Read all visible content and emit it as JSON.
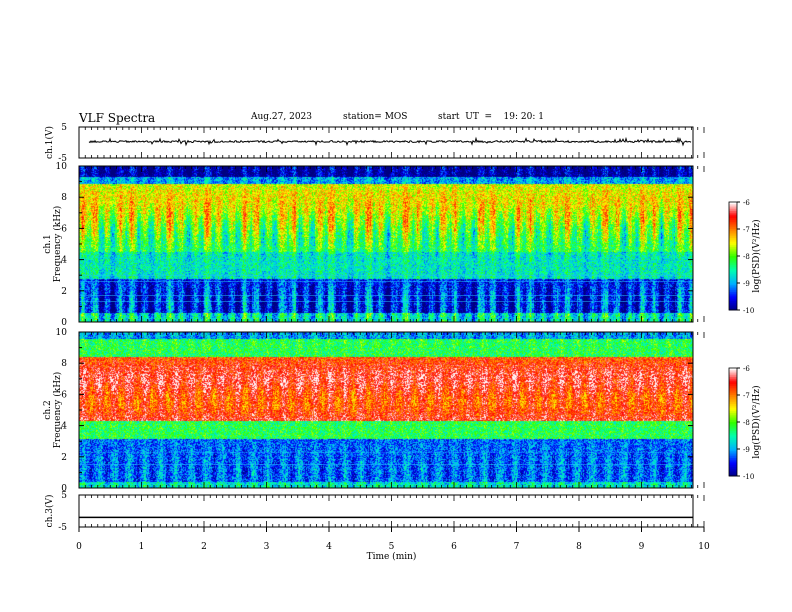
{
  "header": {
    "title": "VLF Spectra",
    "date": "Aug.27, 2023",
    "station": "station= MOS",
    "start": "start  UT  =    19: 20: 1"
  },
  "chart_data": [
    {
      "type": "line",
      "panel": "ch1-waveform",
      "ylabel": "ch.1(V)",
      "ylim": [
        -5,
        5
      ],
      "yticks": [
        "5",
        "-5"
      ],
      "xlim": [
        0,
        10
      ],
      "series": [
        {
          "values_approx": 0.3,
          "style": "noisy-flat"
        }
      ]
    },
    {
      "type": "heatmap",
      "panel": "ch1-spectrogram",
      "ylabel": "ch.1 Frequency (kHz)",
      "ylim": [
        0,
        10
      ],
      "yticks": [
        "0",
        "2",
        "4",
        "6",
        "8",
        "10"
      ],
      "xlim": [
        0,
        9.85
      ],
      "colorbar": {
        "label": "log(PSD)(V²/Hz)",
        "ticks": [
          "-6",
          "-7",
          "-8",
          "-9",
          "-10"
        ],
        "range": [
          -10,
          -6
        ]
      }
    },
    {
      "type": "heatmap",
      "panel": "ch2-spectrogram",
      "ylabel": "ch.2 Frequency (kHz)",
      "ylim": [
        0,
        10
      ],
      "yticks": [
        "0",
        "2",
        "4",
        "6",
        "8",
        "10"
      ],
      "xlim": [
        0,
        9.85
      ],
      "colorbar": {
        "label": "log(PSD)(V²/Hz)",
        "ticks": [
          "-6",
          "-7",
          "-8",
          "-9",
          "-10"
        ],
        "range": [
          -10,
          -6
        ]
      }
    },
    {
      "type": "line",
      "panel": "ch3-waveform",
      "ylabel": "ch.3(V)",
      "ylim": [
        -5,
        5
      ],
      "yticks": [
        "5",
        "-5"
      ],
      "xlim": [
        0,
        10
      ],
      "series": [
        {
          "values_approx": -2.0,
          "style": "flat"
        }
      ]
    }
  ],
  "xaxis": {
    "label": "Time  (min)",
    "ticks": [
      "0",
      "1",
      "2",
      "3",
      "4",
      "5",
      "6",
      "7",
      "8",
      "9",
      "10"
    ]
  },
  "colors": {
    "colormap": [
      "#000080",
      "#0000ff",
      "#00b0ff",
      "#00ffb0",
      "#30ff00",
      "#ffff00",
      "#ff8000",
      "#ff0000",
      "#ffffff"
    ]
  }
}
